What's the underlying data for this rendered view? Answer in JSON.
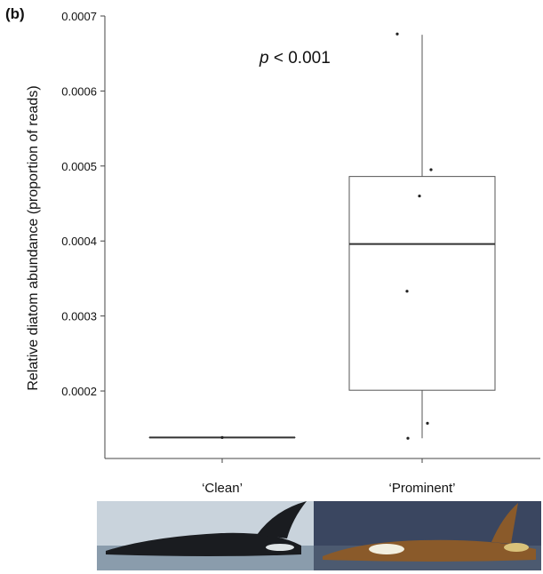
{
  "panel_label": "(b)",
  "chart_data": {
    "type": "box",
    "ylabel": "Relative diatom abundance (proportion of reads)",
    "xlabel": "",
    "categories": [
      "‘Clean’",
      "‘Prominent’"
    ],
    "yticks": [
      "0.0002",
      "0.0003",
      "0.0004",
      "0.0005",
      "0.0006",
      "0.0007"
    ],
    "ylim": [
      0.00011,
      0.0007
    ],
    "annotation": {
      "p_italic": "p",
      "rest": " < 0.001"
    },
    "boxes": [
      {
        "category": "‘Clean’",
        "min": 0.000138,
        "q1": 0.000138,
        "median": 0.000138,
        "q3": 0.000138,
        "max": 0.000138,
        "points": [
          0.000138
        ]
      },
      {
        "category": "‘Prominent’",
        "min": 0.000137,
        "q1": 0.000201,
        "median": 0.000396,
        "q3": 0.000486,
        "max": 0.000675,
        "points": [
          0.000676,
          0.000495,
          0.00046,
          0.000333,
          0.000157,
          0.000137
        ]
      }
    ],
    "grid": false,
    "legend": "none"
  },
  "photos": [
    {
      "name": "killer-whale-clean-photo",
      "sky": "#c9d3dc",
      "water": "#8a9cac",
      "body": "#1a1c20",
      "patch": "#dfe4e6"
    },
    {
      "name": "killer-whale-prominent-photo",
      "sky": "#3a4660",
      "water": "#4c5a70",
      "body": "#8a5a2a",
      "patch": "#f2efe0"
    }
  ]
}
